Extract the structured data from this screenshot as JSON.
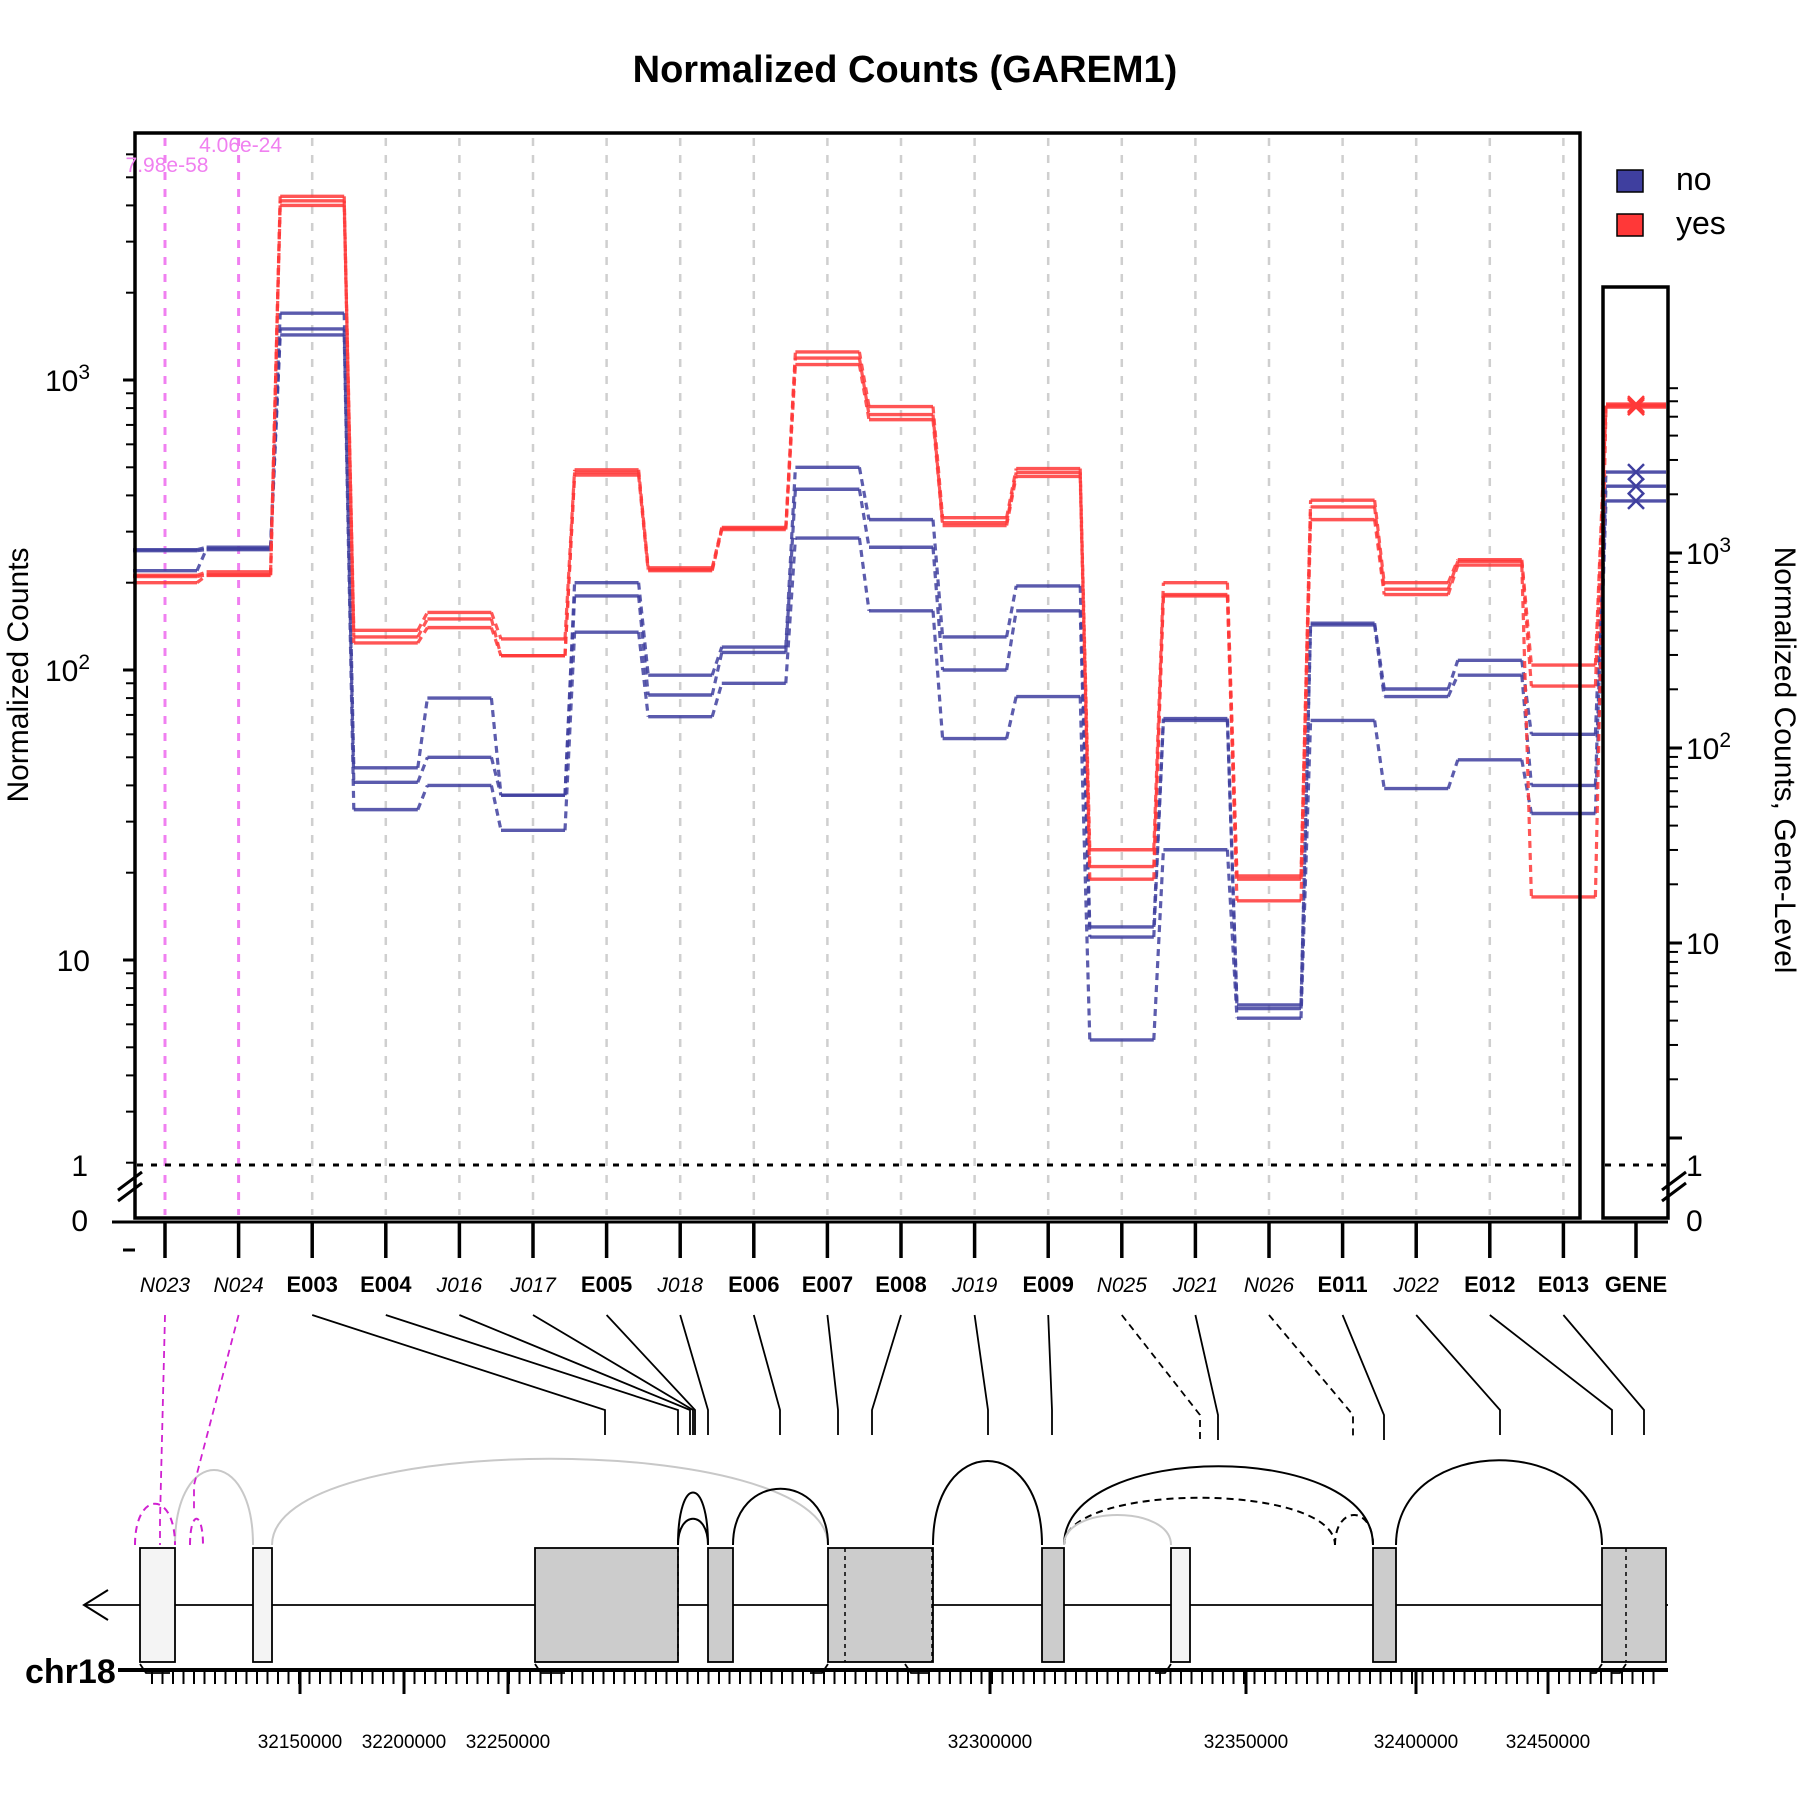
{
  "chart_data": {
    "type": "line",
    "title": "Normalized Counts (GAREM1)",
    "ylabel": "Normalized Counts",
    "ylabel_right": "Normalized Counts, Gene-Level",
    "y_scale": "log",
    "ylim": [
      0.8,
      6000
    ],
    "yticks": [
      {
        "value": 10,
        "label": "10",
        "exp": ""
      },
      {
        "value": 100,
        "label": "10",
        "exp": "2"
      },
      {
        "value": 1000,
        "label": "10",
        "exp": "3"
      }
    ],
    "ytick_one": "1",
    "ytick_zero": "0",
    "right_yticks": [
      {
        "value": 10,
        "label": "10",
        "exp": ""
      },
      {
        "value": 100,
        "label": "10",
        "exp": "2"
      },
      {
        "value": 1000,
        "label": "10",
        "exp": "3"
      }
    ],
    "grid": true,
    "legend": {
      "placement": "top-right",
      "entries": [
        {
          "label": "no",
          "color": "#3f3f9f"
        },
        {
          "label": "yes",
          "color": "#ff3838"
        }
      ]
    },
    "features": [
      {
        "label": "N023",
        "style": "novel"
      },
      {
        "label": "N024",
        "style": "novel"
      },
      {
        "label": "E003",
        "style": "exon"
      },
      {
        "label": "E004",
        "style": "exon"
      },
      {
        "label": "J016",
        "style": "junction"
      },
      {
        "label": "J017",
        "style": "junction"
      },
      {
        "label": "E005",
        "style": "exon"
      },
      {
        "label": "J018",
        "style": "junction"
      },
      {
        "label": "E006",
        "style": "exon"
      },
      {
        "label": "E007",
        "style": "exon"
      },
      {
        "label": "E008",
        "style": "exon"
      },
      {
        "label": "J019",
        "style": "junction"
      },
      {
        "label": "E009",
        "style": "exon"
      },
      {
        "label": "N025",
        "style": "novel"
      },
      {
        "label": "J021",
        "style": "junction"
      },
      {
        "label": "N026",
        "style": "novel"
      },
      {
        "label": "E011",
        "style": "exon"
      },
      {
        "label": "J022",
        "style": "junction"
      },
      {
        "label": "E012",
        "style": "exon"
      },
      {
        "label": "E013",
        "style": "exon"
      }
    ],
    "gene_label": "GENE",
    "pvalues": [
      {
        "feature": "N023",
        "text": "7.98e-58"
      },
      {
        "feature": "N024",
        "text": "4.06e-24"
      }
    ],
    "series": [
      {
        "name": "no",
        "color": "#3f3f9f",
        "values": [
          260,
          265,
          1700,
          46,
          80,
          37,
          200,
          96,
          120,
          500,
          330,
          130,
          195,
          13,
          68,
          7,
          145,
          86,
          108,
          60
        ]
      },
      {
        "name": "no",
        "color": "#3f3f9f",
        "values": [
          220,
          262,
          1500,
          41,
          50,
          37,
          180,
          82,
          115,
          420,
          265,
          100,
          160,
          12,
          67,
          6.8,
          143,
          81,
          96,
          40
        ]
      },
      {
        "name": "no",
        "color": "#3f3f9f",
        "values": [
          258,
          260,
          1430,
          33,
          40,
          28,
          135,
          69,
          90,
          285,
          160,
          58,
          81,
          5.3,
          24,
          6.3,
          67,
          39,
          49,
          32
        ]
      },
      {
        "name": "yes",
        "color": "#ff3838",
        "values": [
          210,
          213,
          4300,
          137,
          158,
          128,
          490,
          225,
          310,
          1250,
          810,
          335,
          495,
          24,
          200,
          19.5,
          385,
          200,
          240,
          104
        ]
      },
      {
        "name": "yes",
        "color": "#ff3838",
        "values": [
          200,
          212,
          4150,
          130,
          150,
          112,
          480,
          222,
          308,
          1190,
          760,
          322,
          480,
          21,
          182,
          19,
          365,
          190,
          237,
          88
        ]
      },
      {
        "name": "yes",
        "color": "#ff3838",
        "values": [
          212,
          218,
          4000,
          124,
          140,
          112,
          470,
          220,
          305,
          1130,
          730,
          315,
          465,
          19,
          180,
          16,
          330,
          182,
          230,
          16.5
        ]
      }
    ],
    "gene_level": {
      "ylim": [
        0.8,
        7500
      ],
      "values": [
        {
          "series": "no",
          "color": "#3f3f9f",
          "value": 2600
        },
        {
          "series": "no",
          "color": "#3f3f9f",
          "value": 2200
        },
        {
          "series": "no",
          "color": "#3f3f9f",
          "value": 1850
        },
        {
          "series": "yes",
          "color": "#ff3838",
          "value": 5800
        },
        {
          "series": "yes",
          "color": "#ff3838",
          "value": 5700
        },
        {
          "series": "yes",
          "color": "#ff3838",
          "value": 5600
        }
      ]
    },
    "chromosome": "chr18",
    "genomic_axis_ticks": [
      {
        "value": 32150000,
        "label": "32150000"
      },
      {
        "value": 32200000,
        "label": "32200000"
      },
      {
        "value": 32250000,
        "label": "32250000"
      },
      {
        "value": 32300000,
        "label": "32300000"
      },
      {
        "value": 32350000,
        "label": "32350000"
      },
      {
        "value": 32400000,
        "label": "32400000"
      },
      {
        "value": 32450000,
        "label": "32450000"
      }
    ]
  }
}
